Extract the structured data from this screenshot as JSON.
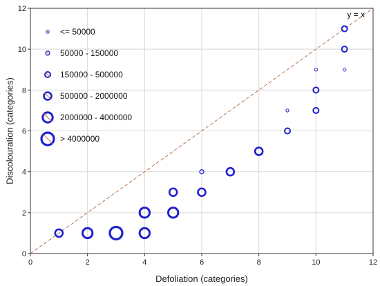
{
  "chart_data": {
    "type": "scatter",
    "xlabel": "Defoliation (categories)",
    "ylabel": "Discolouration (categories)",
    "xlim": [
      0,
      12
    ],
    "ylim": [
      0,
      12
    ],
    "x_ticks": [
      0,
      2,
      4,
      6,
      8,
      10,
      12
    ],
    "y_ticks": [
      0,
      2,
      4,
      6,
      8,
      10,
      12
    ],
    "grid": true,
    "legend_position": "top-left",
    "marker_color": "#2020d0",
    "reference_line": {
      "label": "y = x",
      "color": "#b8734a",
      "style": "dashed"
    },
    "size_classes": [
      {
        "label": "<= 50000"
      },
      {
        "label": "50000 - 150000"
      },
      {
        "label": "150000 - 500000"
      },
      {
        "label": "500000 - 2000000"
      },
      {
        "label": "2000000 - 4000000"
      },
      {
        "label": "> 4000000"
      }
    ],
    "points": [
      {
        "x": 1,
        "y": 1,
        "size_class": 3
      },
      {
        "x": 2,
        "y": 1,
        "size_class": 4
      },
      {
        "x": 3,
        "y": 1,
        "size_class": 5
      },
      {
        "x": 4,
        "y": 1,
        "size_class": 4
      },
      {
        "x": 4,
        "y": 2,
        "size_class": 4
      },
      {
        "x": 5,
        "y": 2,
        "size_class": 4
      },
      {
        "x": 5,
        "y": 3,
        "size_class": 3
      },
      {
        "x": 6,
        "y": 3,
        "size_class": 3
      },
      {
        "x": 6,
        "y": 4,
        "size_class": 1
      },
      {
        "x": 7,
        "y": 4,
        "size_class": 3
      },
      {
        "x": 8,
        "y": 5,
        "size_class": 3
      },
      {
        "x": 9,
        "y": 6,
        "size_class": 2
      },
      {
        "x": 9,
        "y": 7,
        "size_class": 0
      },
      {
        "x": 10,
        "y": 7,
        "size_class": 2
      },
      {
        "x": 10,
        "y": 8,
        "size_class": 2
      },
      {
        "x": 10,
        "y": 9,
        "size_class": 0
      },
      {
        "x": 11,
        "y": 9,
        "size_class": 0
      },
      {
        "x": 11,
        "y": 10,
        "size_class": 2
      },
      {
        "x": 11,
        "y": 11,
        "size_class": 2
      }
    ]
  }
}
